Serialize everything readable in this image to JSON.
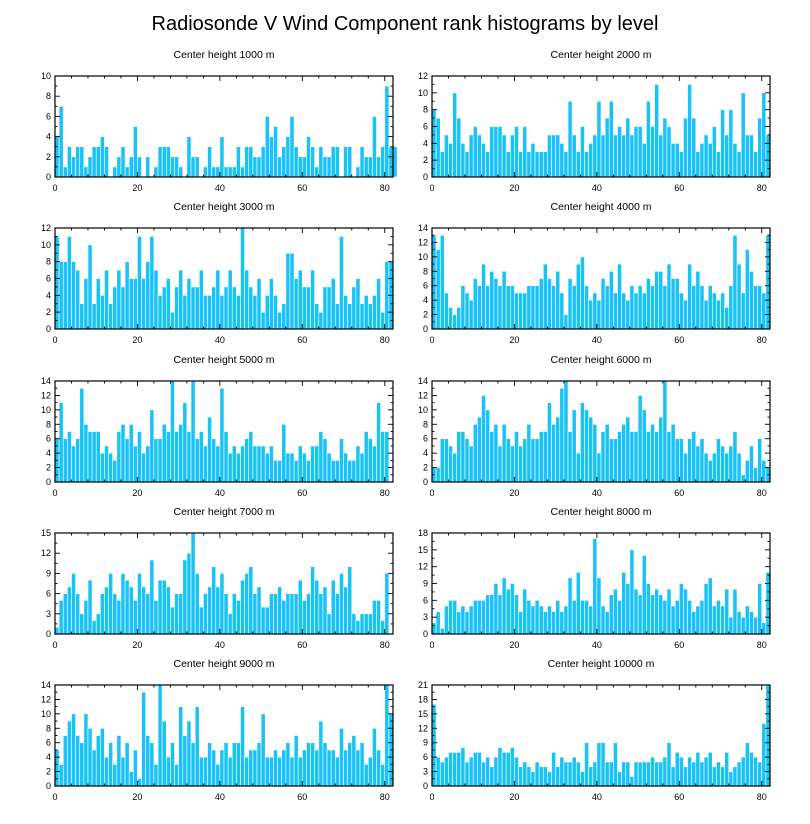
{
  "chart_data": {
    "title": "Radiosonde V Wind Component rank histograms by level",
    "type": "bar",
    "x_ticks": [
      0,
      20,
      40,
      60,
      80
    ],
    "xlim": [
      0,
      82
    ],
    "panels": [
      {
        "title": "Center height 1000 m",
        "ylim": [
          0,
          10
        ],
        "y_ticks": [
          0,
          2,
          4,
          6,
          8,
          10
        ],
        "values": [
          4,
          7,
          1,
          3,
          2,
          3,
          3,
          1,
          2,
          3,
          3,
          4,
          3,
          0,
          1,
          2,
          3,
          1,
          2,
          5,
          2,
          0,
          2,
          0,
          1,
          3,
          3,
          3,
          2,
          2,
          1,
          0,
          4,
          2,
          2,
          0,
          1,
          3,
          1,
          1,
          4,
          1,
          1,
          1,
          3,
          1,
          3,
          3,
          2,
          2,
          3,
          6,
          4,
          5,
          2,
          3,
          4,
          6,
          3,
          2,
          2,
          4,
          3,
          1,
          3,
          2,
          2,
          3,
          3,
          0,
          3,
          3,
          0,
          1,
          3,
          2,
          2,
          6,
          2,
          3,
          9,
          3,
          3
        ]
      },
      {
        "title": "Center height 2000 m",
        "ylim": [
          0,
          12
        ],
        "y_ticks": [
          0,
          2,
          4,
          6,
          8,
          10,
          12
        ],
        "values": [
          8,
          7,
          3,
          5,
          4,
          10,
          7,
          4,
          3,
          5,
          6,
          5,
          4,
          3,
          6,
          6,
          6,
          5,
          3,
          5,
          6,
          3,
          6,
          3,
          4,
          3,
          3,
          3,
          5,
          5,
          5,
          4,
          3,
          9,
          5,
          3,
          6,
          3,
          4,
          5,
          9,
          5,
          7,
          9,
          5,
          6,
          5,
          7,
          5,
          6,
          6,
          4,
          9,
          6,
          11,
          5,
          7,
          6,
          4,
          4,
          3,
          7,
          11,
          7,
          3,
          4,
          5,
          4,
          6,
          3,
          8,
          5,
          8,
          4,
          3,
          10,
          5,
          5,
          3,
          7,
          10,
          5
        ]
      },
      {
        "title": "Center height 3000 m",
        "ylim": [
          0,
          12
        ],
        "y_ticks": [
          0,
          2,
          4,
          6,
          8,
          10,
          12
        ],
        "values": [
          11,
          8,
          8,
          11,
          8,
          7,
          3,
          6,
          10,
          3,
          6,
          4,
          7,
          3,
          5,
          7,
          5,
          8,
          6,
          6,
          11,
          6,
          8,
          11,
          7,
          4,
          5,
          6,
          2,
          5,
          7,
          4,
          6,
          5,
          5,
          7,
          4,
          4,
          5,
          7,
          4,
          5,
          7,
          5,
          4,
          12,
          7,
          5,
          4,
          6,
          2,
          4,
          6,
          4,
          2,
          3,
          9,
          9,
          6,
          7,
          5,
          5,
          7,
          3,
          2,
          5,
          5,
          6,
          3,
          11,
          4,
          3,
          5,
          6,
          3,
          4,
          3,
          4,
          6,
          2,
          8,
          8
        ]
      },
      {
        "title": "Center height 4000 m",
        "ylim": [
          0,
          14
        ],
        "y_ticks": [
          0,
          2,
          4,
          6,
          8,
          10,
          12,
          14
        ],
        "values": [
          13,
          11,
          13,
          5,
          3,
          2,
          3,
          6,
          5,
          4,
          7,
          6,
          9,
          6,
          8,
          7,
          6,
          8,
          6,
          6,
          5,
          5,
          5,
          6,
          6,
          6,
          7,
          9,
          7,
          6,
          8,
          5,
          2,
          7,
          6,
          9,
          10,
          6,
          4,
          5,
          4,
          7,
          6,
          8,
          5,
          9,
          5,
          4,
          6,
          5,
          6,
          5,
          7,
          6,
          8,
          8,
          6,
          9,
          7,
          7,
          5,
          4,
          9,
          6,
          8,
          6,
          4,
          6,
          5,
          4,
          5,
          3,
          6,
          13,
          9,
          5,
          11,
          8,
          6,
          6,
          5,
          13
        ]
      },
      {
        "title": "Center height 5000 m",
        "ylim": [
          0,
          14
        ],
        "y_ticks": [
          0,
          2,
          4,
          6,
          8,
          10,
          12,
          14
        ],
        "values": [
          6,
          11,
          6,
          7,
          5,
          6,
          13,
          8,
          7,
          7,
          7,
          4,
          5,
          4,
          3,
          7,
          8,
          6,
          8,
          5,
          7,
          4,
          5,
          10,
          6,
          6,
          8,
          7,
          14,
          7,
          8,
          11,
          7,
          14,
          6,
          7,
          5,
          9,
          6,
          5,
          13,
          7,
          4,
          5,
          4,
          5,
          6,
          7,
          5,
          5,
          5,
          4,
          5,
          3,
          3,
          8,
          4,
          4,
          3,
          5,
          4,
          3,
          5,
          5,
          7,
          6,
          4,
          3,
          3,
          6,
          4,
          3,
          3,
          5,
          4,
          7,
          6,
          5,
          11,
          7,
          7
        ]
      },
      {
        "title": "Center height 6000 m",
        "ylim": [
          0,
          14
        ],
        "y_ticks": [
          0,
          2,
          4,
          6,
          8,
          10,
          12,
          14
        ],
        "values": [
          2,
          2,
          6,
          6,
          5,
          4,
          7,
          7,
          6,
          5,
          8,
          9,
          12,
          10,
          7,
          8,
          5,
          8,
          6,
          5,
          7,
          5,
          6,
          8,
          6,
          6,
          7,
          7,
          11,
          8,
          9,
          13,
          14,
          7,
          10,
          4,
          11,
          10,
          9,
          8,
          4,
          7,
          8,
          6,
          6,
          7,
          8,
          9,
          7,
          7,
          12,
          10,
          7,
          8,
          7,
          9,
          14,
          7,
          8,
          6,
          6,
          4,
          6,
          7,
          5,
          6,
          4,
          3,
          4,
          6,
          5,
          4,
          5,
          7,
          4,
          1,
          3,
          5,
          2,
          6,
          3,
          2
        ]
      },
      {
        "title": "Center height 7000 m",
        "ylim": [
          0,
          15
        ],
        "y_ticks": [
          0,
          3,
          6,
          9,
          12,
          15
        ],
        "values": [
          1,
          5,
          6,
          7,
          9,
          6,
          3,
          5,
          8,
          2,
          3,
          6,
          7,
          9,
          6,
          5,
          9,
          8,
          7,
          5,
          9,
          7,
          6,
          11,
          5,
          8,
          8,
          7,
          4,
          6,
          6,
          11,
          12,
          15,
          9,
          4,
          6,
          7,
          10,
          7,
          9,
          6,
          3,
          6,
          5,
          8,
          9,
          10,
          6,
          7,
          4,
          4,
          6,
          6,
          7,
          5,
          6,
          6,
          6,
          8,
          5,
          6,
          10,
          8,
          6,
          7,
          3,
          8,
          6,
          9,
          7,
          10,
          3,
          2,
          3,
          3,
          3,
          5,
          5,
          2,
          9
        ]
      },
      {
        "title": "Center height 8000 m",
        "ylim": [
          0,
          18
        ],
        "y_ticks": [
          0,
          3,
          6,
          9,
          12,
          15,
          18
        ],
        "values": [
          2,
          4,
          1,
          5,
          6,
          6,
          4,
          5,
          4,
          5,
          6,
          6,
          6,
          7,
          7,
          9,
          7,
          10,
          8,
          9,
          7,
          4,
          8,
          6,
          5,
          6,
          5,
          4,
          5,
          4,
          6,
          4,
          5,
          10,
          6,
          11,
          6,
          6,
          5,
          17,
          10,
          5,
          4,
          7,
          8,
          6,
          11,
          9,
          15,
          8,
          7,
          14,
          9,
          7,
          8,
          7,
          6,
          8,
          5,
          6,
          9,
          8,
          6,
          4,
          5,
          6,
          9,
          10,
          5,
          6,
          5,
          8,
          3,
          8,
          4,
          3,
          5,
          4,
          3,
          9,
          2,
          11
        ]
      },
      {
        "title": "Center height 9000 m",
        "ylim": [
          0,
          14
        ],
        "y_ticks": [
          0,
          2,
          4,
          6,
          8,
          10,
          12,
          14
        ],
        "values": [
          5,
          3,
          7,
          9,
          10,
          7,
          6,
          10,
          8,
          5,
          7,
          8,
          4,
          6,
          3,
          7,
          4,
          6,
          2,
          5,
          1,
          13,
          7,
          6,
          3,
          14,
          9,
          4,
          6,
          3,
          11,
          7,
          9,
          6,
          11,
          4,
          4,
          6,
          5,
          3,
          5,
          6,
          4,
          6,
          6,
          11,
          4,
          5,
          5,
          6,
          10,
          4,
          4,
          5,
          4,
          5,
          6,
          4,
          7,
          4,
          5,
          6,
          6,
          5,
          9,
          6,
          5,
          5,
          4,
          8,
          5,
          6,
          7,
          5,
          6,
          3,
          4,
          8,
          5,
          3,
          14,
          10
        ]
      },
      {
        "title": "Center height 10000 m",
        "ylim": [
          0,
          21
        ],
        "y_ticks": [
          0,
          3,
          6,
          9,
          12,
          15,
          18,
          21
        ],
        "values": [
          17,
          6,
          5,
          6,
          7,
          7,
          7,
          8,
          5,
          6,
          7,
          7,
          5,
          6,
          4,
          6,
          8,
          7,
          7,
          8,
          6,
          4,
          5,
          4,
          3,
          5,
          4,
          4,
          3,
          7,
          4,
          6,
          5,
          5,
          6,
          5,
          3,
          9,
          4,
          5,
          9,
          9,
          5,
          5,
          9,
          3,
          5,
          5,
          2,
          5,
          5,
          5,
          5,
          6,
          5,
          5,
          6,
          9,
          4,
          7,
          6,
          4,
          6,
          5,
          7,
          5,
          6,
          7,
          4,
          5,
          4,
          7,
          3,
          4,
          5,
          6,
          9,
          7,
          6,
          5,
          13,
          21
        ]
      }
    ]
  }
}
